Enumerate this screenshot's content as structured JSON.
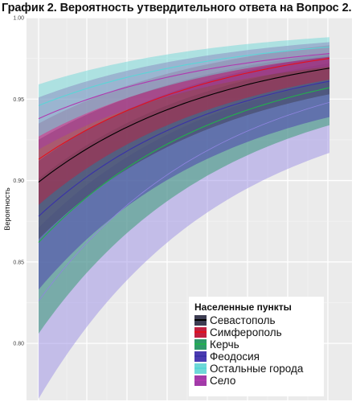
{
  "title": "График 2. Вероятность утвердительного ответа на Вопрос 2.",
  "chart_data": {
    "type": "line",
    "title": "График 2. Вероятность утвердительного ответа на Вопрос 2.",
    "ylabel": "Вероятность",
    "xlabel": "",
    "ylim": [
      0.765,
      1.0
    ],
    "yticks": [
      "0.80",
      "0.85",
      "0.90",
      "0.95",
      "1.00"
    ],
    "grid": true,
    "legend": {
      "title": "Населенные пункты",
      "placement": "bottom-right"
    },
    "x": [
      0,
      1
    ],
    "series": [
      {
        "name": "Севастополь",
        "line": [
          0.899,
          0.969
        ],
        "lower": [
          0.864,
          0.953
        ],
        "upper": [
          0.925,
          0.978
        ],
        "line_color": "#000000",
        "band_color": "#3d3d52"
      },
      {
        "name": "Симферополь",
        "line": [
          0.913,
          0.975
        ],
        "lower": [
          0.885,
          0.962
        ],
        "upper": [
          0.935,
          0.983
        ],
        "line_color": "#e3101c",
        "band_color": "#c02040"
      },
      {
        "name": "Керчь",
        "line": [
          0.862,
          0.957
        ],
        "lower": [
          0.806,
          0.934
        ],
        "upper": [
          0.901,
          0.972
        ],
        "line_color": "#22b14c",
        "band_color": "#2e9a6a"
      },
      {
        "name": "Феодосия",
        "line": [
          0.878,
          0.961
        ],
        "lower": [
          0.833,
          0.939
        ],
        "upper": [
          0.912,
          0.977
        ],
        "line_color": "#3a32a8",
        "band_color": "#4a3ab0"
      },
      {
        "name": "Остальные города",
        "line": [
          0.946,
          0.982
        ],
        "lower": [
          0.927,
          0.976
        ],
        "upper": [
          0.959,
          0.988
        ],
        "line_color": "#5ad6d6",
        "band_color": "#6fd8d8"
      },
      {
        "name": "Село",
        "line": [
          0.938,
          0.978
        ],
        "lower": [
          0.919,
          0.97
        ],
        "upper": [
          0.951,
          0.985
        ],
        "line_color": "#b03ab0",
        "band_color": "#a23aa8"
      },
      {
        "name": "",
        "line": [
          0.826,
          0.948
        ],
        "lower": [
          0.766,
          0.917
        ],
        "upper": [
          0.871,
          0.961
        ],
        "line_color": "#8f84e0",
        "band_color": "#9b8fe6"
      }
    ]
  }
}
